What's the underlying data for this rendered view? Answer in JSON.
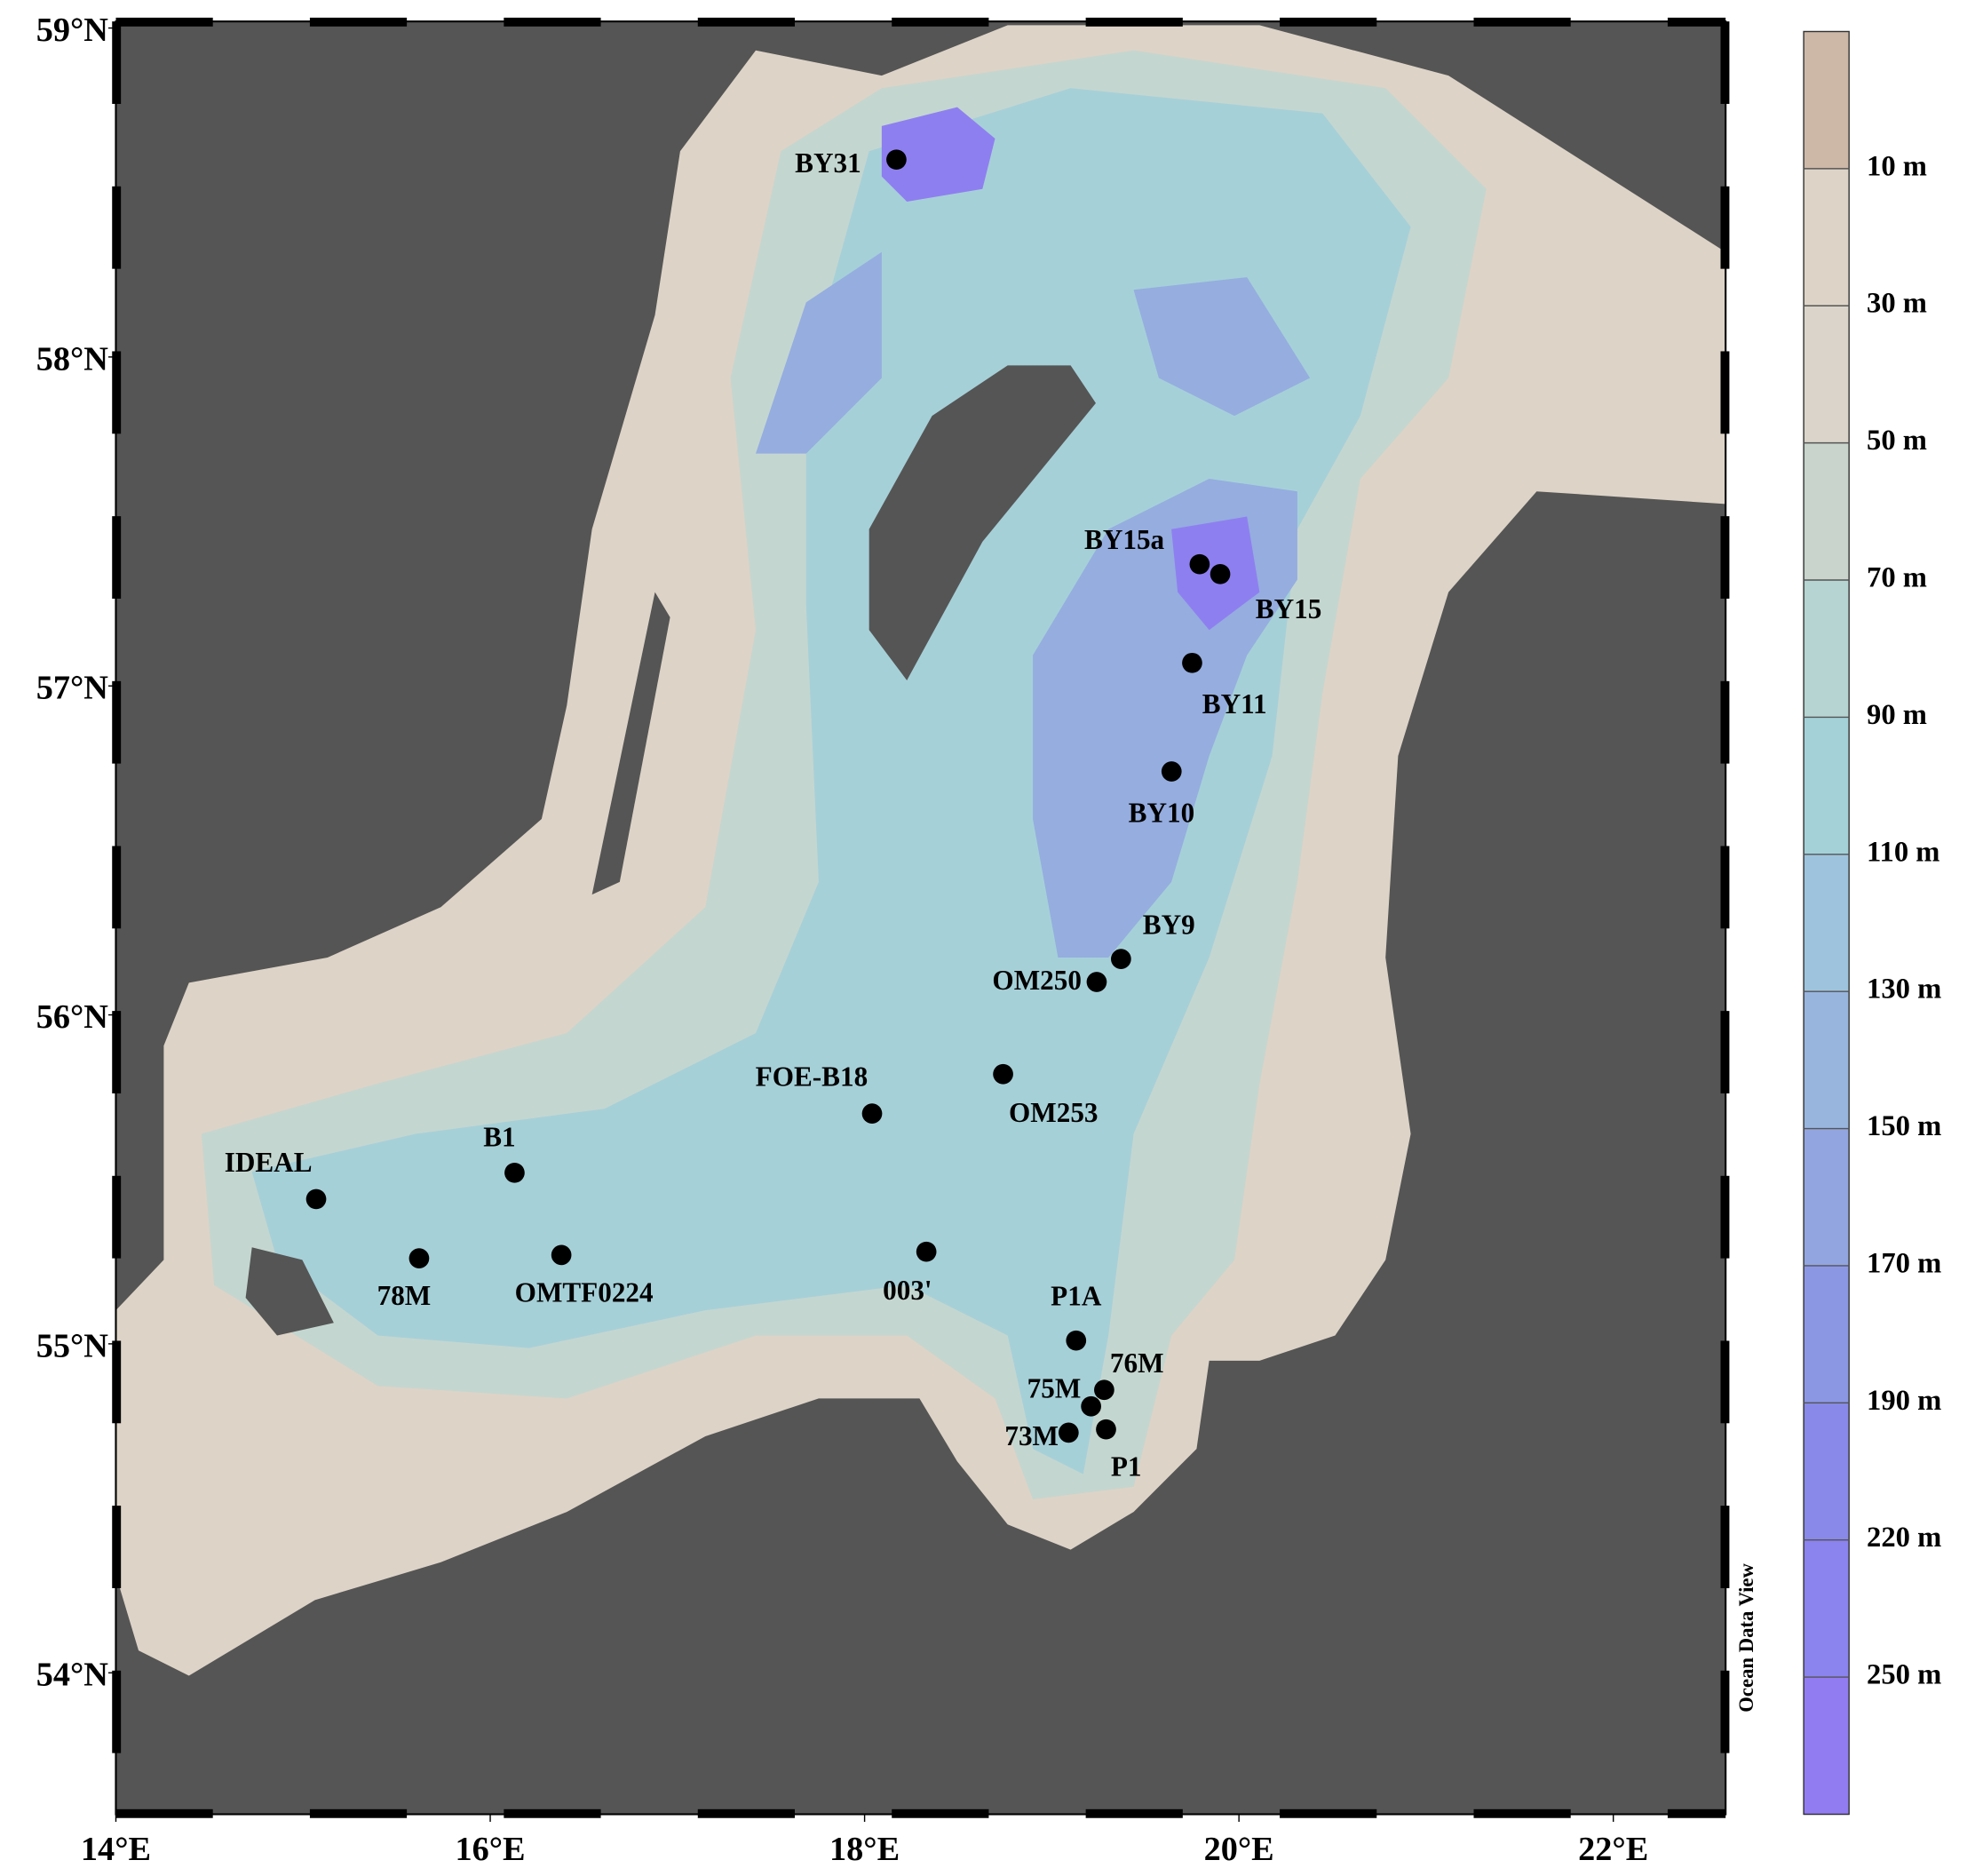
{
  "chart_data": {
    "type": "map",
    "xlim": [
      14,
      22.6
    ],
    "ylim": [
      53.57,
      59.02
    ],
    "xticks": [
      {
        "value": 14,
        "label": "14°E"
      },
      {
        "value": 16,
        "label": "16°E"
      },
      {
        "value": 18,
        "label": "18°E"
      },
      {
        "value": 20,
        "label": "20°E"
      },
      {
        "value": 22,
        "label": "22°E"
      }
    ],
    "yticks": [
      {
        "value": 54,
        "label": "54°N"
      },
      {
        "value": 55,
        "label": "55°N"
      },
      {
        "value": 56,
        "label": "56°N"
      },
      {
        "value": 57,
        "label": "57°N"
      },
      {
        "value": 58,
        "label": "58°N"
      },
      {
        "value": 59,
        "label": "59°N"
      }
    ],
    "stations": {
      "names": [
        "BY31",
        "BY15a",
        "BY15",
        "BY11",
        "BY10",
        "BY9",
        "OM250",
        "OM253",
        "FOE-B18",
        "IDEAL",
        "B1",
        "78M",
        "OMTF0224",
        "003'",
        "P1A",
        "76M",
        "75M",
        "73M",
        "P1"
      ],
      "lon": [
        18.17,
        19.79,
        19.9,
        19.75,
        19.64,
        19.37,
        19.24,
        18.74,
        18.04,
        15.07,
        16.13,
        15.62,
        16.38,
        18.33,
        19.13,
        19.28,
        19.21,
        19.09,
        19.29
      ],
      "lat": [
        58.6,
        57.37,
        57.34,
        57.07,
        56.74,
        56.17,
        56.1,
        55.82,
        55.7,
        55.44,
        55.52,
        55.26,
        55.27,
        55.28,
        55.01,
        54.86,
        54.81,
        54.73,
        54.74
      ],
      "color": "#000000"
    },
    "colorbar": {
      "ticks": [
        {
          "value": 10,
          "label": "10 m"
        },
        {
          "value": 30,
          "label": "30 m"
        },
        {
          "value": 50,
          "label": "50 m"
        },
        {
          "value": 70,
          "label": "70 m"
        },
        {
          "value": 90,
          "label": "90 m"
        },
        {
          "value": 110,
          "label": "110 m"
        },
        {
          "value": 130,
          "label": "130 m"
        },
        {
          "value": 150,
          "label": "150 m"
        },
        {
          "value": 170,
          "label": "170 m"
        },
        {
          "value": 190,
          "label": "190 m"
        },
        {
          "value": 220,
          "label": "220 m"
        },
        {
          "value": 250,
          "label": "250 m"
        }
      ],
      "colors": [
        "#cdb8a8",
        "#ddd3c7",
        "#dbd4cb",
        "#c8d4cc",
        "#b5d4d2",
        "#a4d1d8",
        "#9ec4dd",
        "#98b5de",
        "#92a5e0",
        "#8c97e4",
        "#8889e8",
        "#8b83ee",
        "#927cf2"
      ]
    },
    "credit": "Ocean Data View"
  }
}
